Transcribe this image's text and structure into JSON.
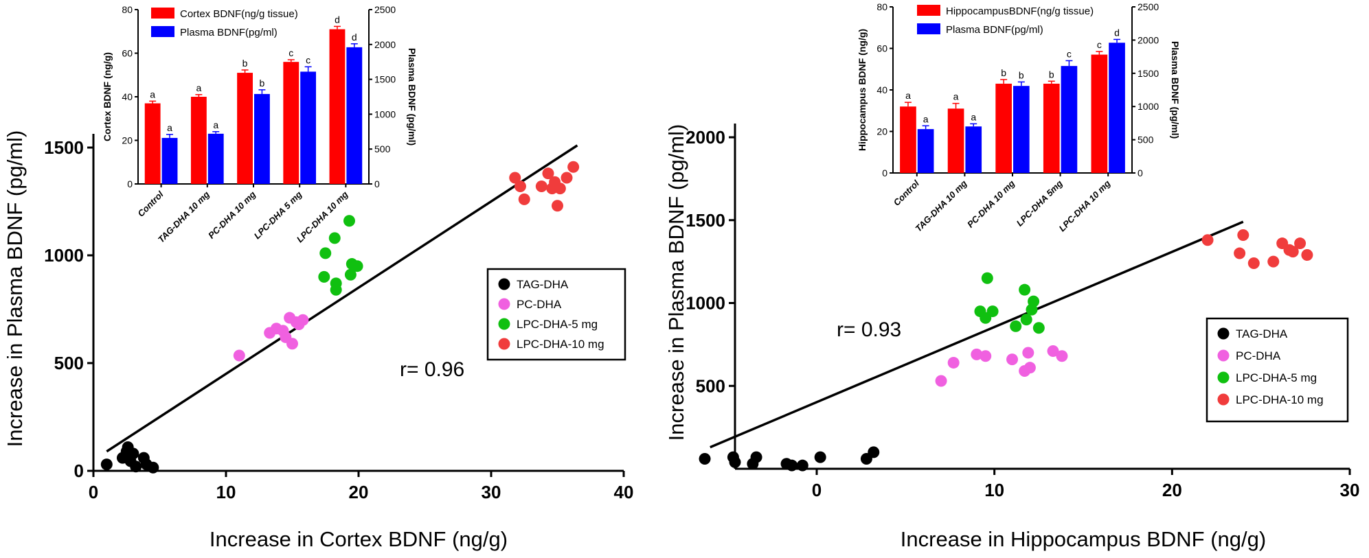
{
  "chart_data": [
    {
      "type": "scatter",
      "xlabel": "Increase in Cortex BDNF (ng/g)",
      "ylabel": "Increase in Plasma BDNF (pg/ml)",
      "xlim": [
        0,
        40
      ],
      "ylim": [
        0,
        1500
      ],
      "xticks": [
        "0",
        "10",
        "20",
        "30",
        "40"
      ],
      "yticks": [
        "0",
        "500",
        "1000",
        "1500"
      ],
      "annotation": "r= 0.96",
      "regression": {
        "x": [
          1,
          36.5
        ],
        "y": [
          90,
          1510
        ]
      },
      "legend_position": "right",
      "series": [
        {
          "name": "TAG-DHA",
          "color": "#000000",
          "points": [
            [
              1,
              30
            ],
            [
              2.2,
              60
            ],
            [
              2.5,
              90
            ],
            [
              2.6,
              110
            ],
            [
              2.7,
              70
            ],
            [
              2.8,
              45
            ],
            [
              3,
              80
            ],
            [
              3.2,
              20
            ],
            [
              3.8,
              60
            ],
            [
              4,
              30
            ],
            [
              4.5,
              15
            ]
          ]
        },
        {
          "name": "PC-DHA",
          "color": "#f060e0",
          "points": [
            [
              11,
              535
            ],
            [
              13.3,
              640
            ],
            [
              13.8,
              660
            ],
            [
              14.5,
              620
            ],
            [
              14.8,
              710
            ],
            [
              15,
              590
            ],
            [
              15.3,
              690
            ],
            [
              15.8,
              700
            ],
            [
              15.5,
              680
            ],
            [
              14.3,
              650
            ]
          ]
        },
        {
          "name": "LPC-DHA-5 mg",
          "color": "#10c010",
          "points": [
            [
              17.5,
              1010
            ],
            [
              17.4,
              900
            ],
            [
              18.2,
              1080
            ],
            [
              18.3,
              870
            ],
            [
              18.3,
              840
            ],
            [
              19.3,
              1160
            ],
            [
              19.5,
              960
            ],
            [
              19.4,
              910
            ],
            [
              19.9,
              950
            ]
          ]
        },
        {
          "name": "LPC-DHA-10 mg",
          "color": "#f03c3c",
          "points": [
            [
              31.8,
              1360
            ],
            [
              32.2,
              1320
            ],
            [
              32.5,
              1260
            ],
            [
              33.8,
              1320
            ],
            [
              34.3,
              1380
            ],
            [
              34.6,
              1310
            ],
            [
              35,
              1230
            ],
            [
              35.2,
              1310
            ],
            [
              35.7,
              1360
            ],
            [
              36.2,
              1410
            ],
            [
              34.8,
              1340
            ]
          ]
        }
      ]
    },
    {
      "type": "bar",
      "categories": [
        "Control",
        "TAG-DHA 10 mg",
        "PC-DHA 10 mg",
        "LPC-DHA 5 mg",
        "LPC-DHA 10 mg"
      ],
      "ylabel": "Cortex BDNF (ng/g)",
      "y2label": "Plasma BDNF (pg/ml)",
      "ylim": [
        0,
        80
      ],
      "y2lim": [
        0,
        2500
      ],
      "yticks": [
        "0",
        "20",
        "40",
        "60",
        "80"
      ],
      "y2ticks": [
        "0",
        "500",
        "1000",
        "1500",
        "2000",
        "2500"
      ],
      "legend_position": "top-left",
      "series": [
        {
          "name": "Cortex BDNF(ng/g tissue)",
          "color": "#ff0000",
          "axis": "left",
          "values": [
            37,
            40,
            51,
            56,
            71
          ],
          "errors": [
            1,
            1,
            1.3,
            1,
            1.3
          ],
          "letters": [
            "a",
            "a",
            "b",
            "c",
            "d"
          ]
        },
        {
          "name": "Plasma BDNF(pg/ml)",
          "color": "#0000ff",
          "axis": "right",
          "values": [
            660,
            720,
            1290,
            1610,
            1960
          ],
          "errors": [
            50,
            30,
            60,
            70,
            50
          ],
          "letters": [
            "a",
            "a",
            "b",
            "c",
            "d"
          ]
        }
      ]
    },
    {
      "type": "scatter",
      "xlabel": "Increase in Hippocampus BDNF (ng/g)",
      "ylabel": "Increase in Plasma BDNF (pg/ml)",
      "xlim": [
        -6.5,
        30
      ],
      "ylim": [
        0,
        2000
      ],
      "xticks": [
        "0",
        "10",
        "20",
        "30"
      ],
      "yticks": [
        "500",
        "1000",
        "1500",
        "2000"
      ],
      "annotation": "r= 0.93",
      "regression": {
        "x": [
          -6,
          24
        ],
        "y": [
          130,
          1490
        ]
      },
      "legend_position": "right",
      "series": [
        {
          "name": "TAG-DHA",
          "color": "#000000",
          "points": [
            [
              -6.3,
              60
            ],
            [
              -4.7,
              70
            ],
            [
              -4.6,
              40
            ],
            [
              -3.6,
              30
            ],
            [
              -3.4,
              70
            ],
            [
              -1.7,
              30
            ],
            [
              -1.4,
              20
            ],
            [
              -0.8,
              20
            ],
            [
              0.2,
              70
            ],
            [
              2.8,
              60
            ],
            [
              3.2,
              100
            ]
          ]
        },
        {
          "name": "PC-DHA",
          "color": "#f060e0",
          "points": [
            [
              7,
              530
            ],
            [
              7.7,
              640
            ],
            [
              9,
              690
            ],
            [
              9.5,
              680
            ],
            [
              11,
              660
            ],
            [
              11.7,
              590
            ],
            [
              11.9,
              700
            ],
            [
              12,
              610
            ],
            [
              13.3,
              710
            ],
            [
              13.8,
              680
            ]
          ]
        },
        {
          "name": "LPC-DHA-5 mg",
          "color": "#10c010",
          "points": [
            [
              9.2,
              950
            ],
            [
              9.5,
              910
            ],
            [
              9.6,
              1150
            ],
            [
              9.9,
              950
            ],
            [
              11.2,
              860
            ],
            [
              11.7,
              1080
            ],
            [
              11.8,
              900
            ],
            [
              12.1,
              960
            ],
            [
              12.2,
              1010
            ],
            [
              12.5,
              850
            ]
          ]
        },
        {
          "name": "LPC-DHA-10 mg",
          "color": "#f03c3c",
          "points": [
            [
              22,
              1380
            ],
            [
              23.8,
              1300
            ],
            [
              24,
              1410
            ],
            [
              24.6,
              1240
            ],
            [
              25.7,
              1250
            ],
            [
              26.2,
              1360
            ],
            [
              26.6,
              1320
            ],
            [
              26.8,
              1310
            ],
            [
              27.2,
              1360
            ],
            [
              27.6,
              1290
            ]
          ]
        }
      ]
    },
    {
      "type": "bar",
      "categories": [
        "Control",
        "TAG-DHA 10 mg",
        "PC-DHA 10 mg",
        "LPC-DHA 5mg",
        "LPC-DHA 10 mg"
      ],
      "ylabel": "Hippocampus BDNF (ng/g)",
      "y2label": "Plasma BDNF (pg/ml)",
      "ylim": [
        0,
        80
      ],
      "y2lim": [
        0,
        2500
      ],
      "yticks": [
        "0",
        "20",
        "40",
        "60",
        "80"
      ],
      "y2ticks": [
        "0",
        "500",
        "1000",
        "1500",
        "2000",
        "2500"
      ],
      "legend_position": "top-left",
      "series": [
        {
          "name": "HippocampusBDNF(ng/g tissue)",
          "color": "#ff0000",
          "axis": "left",
          "values": [
            32,
            31,
            43,
            43,
            57
          ],
          "errors": [
            2,
            2.5,
            2,
            1.2,
            1.5
          ],
          "letters": [
            "a",
            "a",
            "b",
            "b",
            "c"
          ]
        },
        {
          "name": "Plasma BDNF(pg/ml)",
          "color": "#0000ff",
          "axis": "right",
          "values": [
            660,
            700,
            1310,
            1610,
            1960
          ],
          "errors": [
            50,
            40,
            60,
            80,
            50
          ],
          "letters": [
            "a",
            "a",
            "b",
            "c",
            "d"
          ]
        }
      ]
    }
  ]
}
